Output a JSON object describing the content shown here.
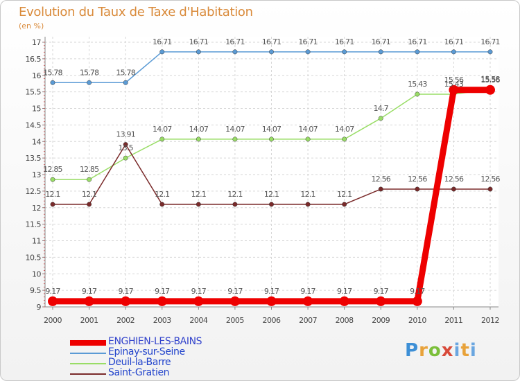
{
  "title": "Evolution du Taux de Taxe d'Habitation",
  "subtitle": "(en %)",
  "logo": {
    "letters": [
      "P",
      "r",
      "o",
      "x",
      "i",
      "t",
      "i"
    ]
  },
  "chart_data": {
    "type": "line",
    "title": "Evolution du Taux de Taxe d'Habitation",
    "ylabel": "(en %)",
    "xlabel": "",
    "ylim": [
      9,
      17
    ],
    "yticks": [
      "9",
      "9.5",
      "10",
      "10.5",
      "11",
      "11.5",
      "12",
      "12.5",
      "13",
      "13.5",
      "14",
      "14.5",
      "15",
      "15.5",
      "16",
      "16.5",
      "17"
    ],
    "categories": [
      "2000",
      "2001",
      "2002",
      "2003",
      "2004",
      "2005",
      "2006",
      "2007",
      "2008",
      "2009",
      "2010",
      "2011",
      "2012"
    ],
    "series": [
      {
        "name": "ENGHIEN-LES-BAINS",
        "color": "#ee0000",
        "values": [
          9.17,
          9.17,
          9.17,
          9.17,
          9.17,
          9.17,
          9.17,
          9.17,
          9.17,
          9.17,
          9.17,
          15.56,
          15.56
        ],
        "labels": [
          "9.17",
          "9.17",
          "9.17",
          "9.17",
          "9.17",
          "9.17",
          "9.17",
          "9.17",
          "9.17",
          "9.17",
          "9.17",
          "15.56",
          "15.56"
        ]
      },
      {
        "name": "Epinay-sur-Seine",
        "color": "#5b9bd5",
        "values": [
          15.78,
          15.78,
          15.78,
          16.71,
          16.71,
          16.71,
          16.71,
          16.71,
          16.71,
          16.71,
          16.71,
          16.71,
          16.71
        ],
        "labels": [
          "15.78",
          "15.78",
          "15.78",
          "16.71",
          "16.71",
          "16.71",
          "16.71",
          "16.71",
          "16.71",
          "16.71",
          "16.71",
          "16.71",
          "16.71"
        ]
      },
      {
        "name": "Deuil-la-Barre",
        "color": "#99dd66",
        "values": [
          12.85,
          12.85,
          13.5,
          14.07,
          14.07,
          14.07,
          14.07,
          14.07,
          14.07,
          14.7,
          15.43,
          15.43,
          15.58
        ],
        "labels": [
          "12.85",
          "12.85",
          "13.5",
          "14.07",
          "14.07",
          "14.07",
          "14.07",
          "14.07",
          "14.07",
          "14.7",
          "15.43",
          "15.43",
          "15.58"
        ]
      },
      {
        "name": "Saint-Gratien",
        "color": "#7a2a2a",
        "values": [
          12.1,
          12.1,
          13.91,
          12.1,
          12.1,
          12.1,
          12.1,
          12.1,
          12.1,
          12.56,
          12.56,
          12.56,
          12.56
        ],
        "labels": [
          "12.1",
          "12.1",
          "13.91",
          "12.1",
          "12.1",
          "12.1",
          "12.1",
          "12.1",
          "12.1",
          "12.56",
          "12.56",
          "12.56",
          "12.56"
        ]
      }
    ]
  }
}
